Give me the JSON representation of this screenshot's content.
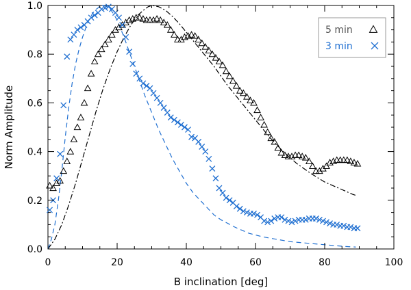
{
  "chart_data": {
    "type": "scatter",
    "title": "",
    "xlabel": "B inclination [deg]",
    "ylabel": "Norm Amplitude",
    "xlim": [
      0,
      100
    ],
    "ylim": [
      0,
      1.0
    ],
    "x_ticks": [
      "0",
      "20",
      "40",
      "60",
      "80",
      "100"
    ],
    "y_ticks": [
      "0.0",
      "0.2",
      "0.4",
      "0.6",
      "0.8",
      "1.0"
    ],
    "grid": false,
    "legend_position": "top-right",
    "colors": {
      "five_min": "#000000",
      "three_min": "#1f6fd1"
    },
    "series": [
      {
        "name": "5 min",
        "marker": "triangle",
        "color": "#000000",
        "points": [
          [
            0.5,
            0.26
          ],
          [
            1.5,
            0.25
          ],
          [
            2.5,
            0.27
          ],
          [
            3.5,
            0.28
          ],
          [
            4.5,
            0.32
          ],
          [
            5.5,
            0.36
          ],
          [
            6.5,
            0.4
          ],
          [
            7.5,
            0.45
          ],
          [
            8.5,
            0.5
          ],
          [
            9.5,
            0.54
          ],
          [
            10.5,
            0.6
          ],
          [
            11.5,
            0.66
          ],
          [
            12.5,
            0.72
          ],
          [
            13.5,
            0.77
          ],
          [
            14.5,
            0.8
          ],
          [
            15.5,
            0.82
          ],
          [
            16.5,
            0.84
          ],
          [
            17.5,
            0.86
          ],
          [
            18.5,
            0.88
          ],
          [
            19.5,
            0.9
          ],
          [
            20.5,
            0.91
          ],
          [
            21.5,
            0.92
          ],
          [
            22.5,
            0.93
          ],
          [
            23.5,
            0.94
          ],
          [
            24.5,
            0.945
          ],
          [
            25.5,
            0.95
          ],
          [
            26.5,
            0.95
          ],
          [
            27.5,
            0.945
          ],
          [
            28.5,
            0.94
          ],
          [
            29.5,
            0.94
          ],
          [
            30.5,
            0.94
          ],
          [
            31.5,
            0.945
          ],
          [
            32.5,
            0.94
          ],
          [
            33.5,
            0.93
          ],
          [
            34.5,
            0.92
          ],
          [
            35.5,
            0.9
          ],
          [
            36.5,
            0.88
          ],
          [
            37.5,
            0.86
          ],
          [
            38.5,
            0.86
          ],
          [
            39.5,
            0.87
          ],
          [
            40.5,
            0.875
          ],
          [
            41.5,
            0.88
          ],
          [
            42.5,
            0.875
          ],
          [
            43.5,
            0.86
          ],
          [
            44.5,
            0.845
          ],
          [
            45.5,
            0.83
          ],
          [
            46.5,
            0.815
          ],
          [
            47.5,
            0.8
          ],
          [
            48.5,
            0.785
          ],
          [
            49.5,
            0.77
          ],
          [
            50.5,
            0.755
          ],
          [
            51.5,
            0.73
          ],
          [
            52.5,
            0.71
          ],
          [
            53.5,
            0.69
          ],
          [
            54.5,
            0.67
          ],
          [
            55.5,
            0.65
          ],
          [
            56.5,
            0.64
          ],
          [
            57.5,
            0.625
          ],
          [
            58.5,
            0.61
          ],
          [
            59.5,
            0.6
          ],
          [
            60.5,
            0.57
          ],
          [
            61.5,
            0.54
          ],
          [
            62.5,
            0.51
          ],
          [
            63.5,
            0.48
          ],
          [
            64.5,
            0.455
          ],
          [
            65.5,
            0.44
          ],
          [
            66.5,
            0.415
          ],
          [
            67.5,
            0.395
          ],
          [
            68.5,
            0.385
          ],
          [
            69.5,
            0.38
          ],
          [
            70.5,
            0.38
          ],
          [
            71.5,
            0.385
          ],
          [
            72.5,
            0.385
          ],
          [
            73.5,
            0.38
          ],
          [
            74.5,
            0.375
          ],
          [
            75.5,
            0.36
          ],
          [
            76.5,
            0.34
          ],
          [
            77.5,
            0.32
          ],
          [
            78.5,
            0.32
          ],
          [
            79.5,
            0.33
          ],
          [
            80.5,
            0.34
          ],
          [
            81.5,
            0.355
          ],
          [
            82.5,
            0.36
          ],
          [
            83.5,
            0.365
          ],
          [
            84.5,
            0.365
          ],
          [
            85.5,
            0.365
          ],
          [
            86.5,
            0.365
          ],
          [
            87.5,
            0.36
          ],
          [
            88.5,
            0.355
          ],
          [
            89.5,
            0.35
          ]
        ]
      },
      {
        "name": "3 min",
        "marker": "x",
        "color": "#1f6fd1",
        "points": [
          [
            0.5,
            0.16
          ],
          [
            1.5,
            0.2
          ],
          [
            2.5,
            0.29
          ],
          [
            3.5,
            0.39
          ],
          [
            4.5,
            0.59
          ],
          [
            5.5,
            0.79
          ],
          [
            6.5,
            0.86
          ],
          [
            7.5,
            0.88
          ],
          [
            8.5,
            0.9
          ],
          [
            9.5,
            0.91
          ],
          [
            10.5,
            0.92
          ],
          [
            11.5,
            0.935
          ],
          [
            12.5,
            0.95
          ],
          [
            13.5,
            0.96
          ],
          [
            14.5,
            0.97
          ],
          [
            15.5,
            0.985
          ],
          [
            16.5,
            0.99
          ],
          [
            17.5,
            0.995
          ],
          [
            18.5,
            0.985
          ],
          [
            19.5,
            0.97
          ],
          [
            20.5,
            0.95
          ],
          [
            21.5,
            0.92
          ],
          [
            22.5,
            0.87
          ],
          [
            23.5,
            0.81
          ],
          [
            24.5,
            0.76
          ],
          [
            25.5,
            0.72
          ],
          [
            26.5,
            0.7
          ],
          [
            27.5,
            0.68
          ],
          [
            28.5,
            0.67
          ],
          [
            29.5,
            0.66
          ],
          [
            30.5,
            0.64
          ],
          [
            31.5,
            0.62
          ],
          [
            32.5,
            0.6
          ],
          [
            33.5,
            0.58
          ],
          [
            34.5,
            0.56
          ],
          [
            35.5,
            0.54
          ],
          [
            36.5,
            0.53
          ],
          [
            37.5,
            0.52
          ],
          [
            38.5,
            0.51
          ],
          [
            39.5,
            0.5
          ],
          [
            40.5,
            0.49
          ],
          [
            41.5,
            0.46
          ],
          [
            42.5,
            0.455
          ],
          [
            43.5,
            0.44
          ],
          [
            44.5,
            0.42
          ],
          [
            45.5,
            0.4
          ],
          [
            46.5,
            0.37
          ],
          [
            47.5,
            0.33
          ],
          [
            48.5,
            0.29
          ],
          [
            49.5,
            0.25
          ],
          [
            50.5,
            0.23
          ],
          [
            51.5,
            0.21
          ],
          [
            52.5,
            0.2
          ],
          [
            53.5,
            0.19
          ],
          [
            54.5,
            0.175
          ],
          [
            55.5,
            0.165
          ],
          [
            56.5,
            0.155
          ],
          [
            57.5,
            0.15
          ],
          [
            58.5,
            0.145
          ],
          [
            59.5,
            0.145
          ],
          [
            60.5,
            0.14
          ],
          [
            61.5,
            0.13
          ],
          [
            62.5,
            0.115
          ],
          [
            63.5,
            0.11
          ],
          [
            64.5,
            0.115
          ],
          [
            65.5,
            0.125
          ],
          [
            66.5,
            0.13
          ],
          [
            67.5,
            0.13
          ],
          [
            68.5,
            0.12
          ],
          [
            69.5,
            0.115
          ],
          [
            70.5,
            0.11
          ],
          [
            71.5,
            0.115
          ],
          [
            72.5,
            0.12
          ],
          [
            73.5,
            0.12
          ],
          [
            74.5,
            0.12
          ],
          [
            75.5,
            0.125
          ],
          [
            76.5,
            0.125
          ],
          [
            77.5,
            0.125
          ],
          [
            78.5,
            0.12
          ],
          [
            79.5,
            0.115
          ],
          [
            80.5,
            0.11
          ],
          [
            81.5,
            0.105
          ],
          [
            82.5,
            0.1
          ],
          [
            83.5,
            0.1
          ],
          [
            84.5,
            0.095
          ],
          [
            85.5,
            0.095
          ],
          [
            86.5,
            0.09
          ],
          [
            87.5,
            0.09
          ],
          [
            88.5,
            0.085
          ],
          [
            89.5,
            0.085
          ]
        ]
      }
    ],
    "fit_curves": [
      {
        "name": "5 min fit",
        "style": "dash-dot",
        "color": "#000000",
        "points": [
          [
            0,
            0
          ],
          [
            2,
            0.04
          ],
          [
            4,
            0.1
          ],
          [
            6,
            0.18
          ],
          [
            8,
            0.27
          ],
          [
            10,
            0.37
          ],
          [
            12,
            0.47
          ],
          [
            14,
            0.57
          ],
          [
            16,
            0.66
          ],
          [
            18,
            0.74
          ],
          [
            20,
            0.81
          ],
          [
            22,
            0.87
          ],
          [
            24,
            0.92
          ],
          [
            26,
            0.96
          ],
          [
            28,
            0.985
          ],
          [
            29,
            0.995
          ],
          [
            30,
            1.0
          ],
          [
            32,
            0.995
          ],
          [
            34,
            0.98
          ],
          [
            36,
            0.955
          ],
          [
            38,
            0.925
          ],
          [
            40,
            0.89
          ],
          [
            44,
            0.82
          ],
          [
            48,
            0.75
          ],
          [
            52,
            0.67
          ],
          [
            56,
            0.6
          ],
          [
            60,
            0.53
          ],
          [
            64,
            0.46
          ],
          [
            68,
            0.4
          ],
          [
            72,
            0.35
          ],
          [
            76,
            0.31
          ],
          [
            80,
            0.275
          ],
          [
            84,
            0.25
          ],
          [
            88,
            0.225
          ],
          [
            89,
            0.22
          ]
        ]
      },
      {
        "name": "3 min fit",
        "style": "dashed",
        "color": "#1f6fd1",
        "points": [
          [
            0,
            0
          ],
          [
            1,
            0.04
          ],
          [
            2,
            0.1
          ],
          [
            3,
            0.2
          ],
          [
            4,
            0.32
          ],
          [
            5,
            0.46
          ],
          [
            6,
            0.58
          ],
          [
            7,
            0.68
          ],
          [
            8,
            0.76
          ],
          [
            9,
            0.82
          ],
          [
            10,
            0.87
          ],
          [
            11,
            0.91
          ],
          [
            12,
            0.945
          ],
          [
            13,
            0.97
          ],
          [
            14,
            0.985
          ],
          [
            15,
            0.995
          ],
          [
            16,
            1.0
          ],
          [
            17,
            0.995
          ],
          [
            18,
            0.985
          ],
          [
            19,
            0.965
          ],
          [
            20,
            0.94
          ],
          [
            22,
            0.87
          ],
          [
            24,
            0.79
          ],
          [
            26,
            0.71
          ],
          [
            28,
            0.63
          ],
          [
            30,
            0.56
          ],
          [
            32,
            0.49
          ],
          [
            34,
            0.43
          ],
          [
            36,
            0.37
          ],
          [
            38,
            0.32
          ],
          [
            40,
            0.27
          ],
          [
            42,
            0.23
          ],
          [
            44,
            0.2
          ],
          [
            46,
            0.17
          ],
          [
            48,
            0.14
          ],
          [
            50,
            0.12
          ],
          [
            54,
            0.09
          ],
          [
            58,
            0.065
          ],
          [
            62,
            0.05
          ],
          [
            66,
            0.04
          ],
          [
            70,
            0.03
          ],
          [
            74,
            0.025
          ],
          [
            78,
            0.02
          ],
          [
            82,
            0.015
          ],
          [
            86,
            0.01
          ],
          [
            89,
            0.008
          ]
        ]
      }
    ]
  }
}
